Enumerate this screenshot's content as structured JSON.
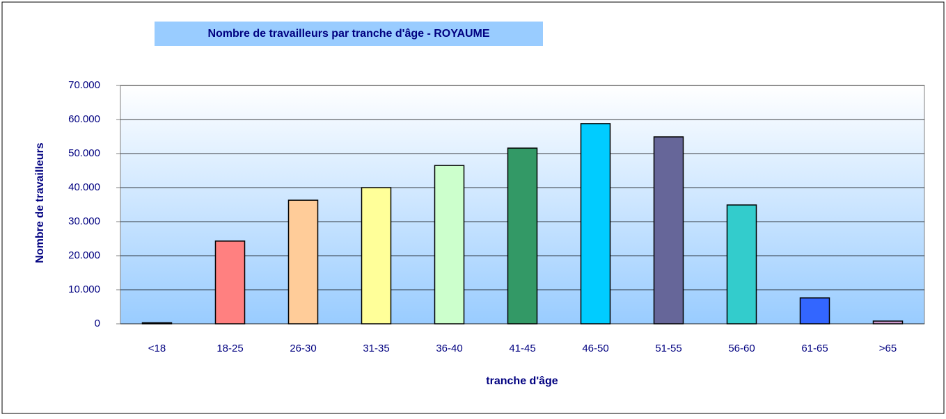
{
  "chart_data": {
    "type": "bar",
    "title": "Nombre de travailleurs par tranche d'âge - ROYAUME",
    "x_label": "tranche d'âge",
    "y_label": "Nombre de travailleurs",
    "categories": [
      "<18",
      "18-25",
      "26-30",
      "31-35",
      "36-40",
      "41-45",
      "46-50",
      "51-55",
      "56-60",
      "61-65",
      ">65"
    ],
    "values": [
      300,
      24300,
      36300,
      40000,
      46500,
      51600,
      58800,
      54900,
      34900,
      7600,
      800
    ],
    "colors": [
      "#ff99cc",
      "#ff8080",
      "#ffcc99",
      "#ffff99",
      "#ccffcc",
      "#339966",
      "#00ccff",
      "#666699",
      "#33cccc",
      "#3366ff",
      "#cc99cc"
    ],
    "ylim": [
      0,
      70000
    ],
    "yticks": [
      0,
      {
        "value": 10000,
        "label": "10.000"
      },
      {
        "value": 20000,
        "label": "20.000"
      },
      {
        "value": 30000,
        "label": "30.000"
      },
      {
        "value": 40000,
        "label": "40.000"
      },
      {
        "value": 50000,
        "label": "50.000"
      },
      {
        "value": 60000,
        "label": "60.000"
      },
      {
        "value": 70000,
        "label": "70.000"
      }
    ],
    "grid": true
  }
}
